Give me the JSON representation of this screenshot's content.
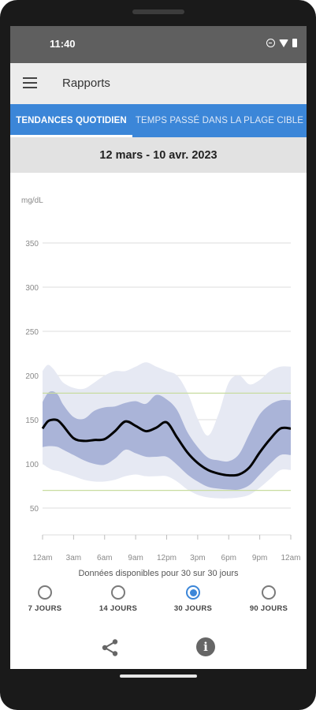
{
  "status_bar": {
    "time": "11:40",
    "icons": [
      "do-not-disturb-icon",
      "wifi-icon",
      "battery-icon"
    ]
  },
  "app_bar": {
    "menu_icon": "hamburger-menu-icon",
    "title": "Rapports"
  },
  "tabs": [
    {
      "label": "TENDANCES QUOTIDIEN",
      "active": true
    },
    {
      "label": "TEMPS PASSÉ DANS LA PLAGE CIBLE",
      "active": false
    }
  ],
  "date_range": "12 mars - 10 avr. 2023",
  "chart_data": {
    "type": "area",
    "ylabel": "mg/dL",
    "yticks": [
      50,
      100,
      150,
      200,
      250,
      300,
      350
    ],
    "ylim": [
      0,
      370
    ],
    "xticks": [
      "12am",
      "3am",
      "6am",
      "9am",
      "12pm",
      "3pm",
      "6pm",
      "9pm",
      "12am"
    ],
    "xlim": [
      0,
      24
    ],
    "target_range": [
      70,
      180
    ],
    "grid": true,
    "colors": {
      "median": "#000000",
      "inner_band": "#aab4d8",
      "outer_band": "#e6e9f3",
      "target_line": "#c8dca0",
      "grid": "#dedede"
    },
    "series": [
      {
        "x": [
          0,
          0.5,
          1,
          1.5,
          2,
          3,
          4,
          5,
          6,
          7,
          8,
          9,
          10,
          11,
          12,
          13,
          14,
          15,
          16,
          17,
          18,
          19,
          20,
          21,
          22,
          23,
          24
        ],
        "median": [
          140,
          148,
          150,
          149,
          143,
          129,
          126,
          127,
          128,
          137,
          148,
          143,
          137,
          141,
          147,
          130,
          113,
          101,
          93,
          89,
          87,
          88,
          96,
          113,
          128,
          140,
          140
        ],
        "p25": [
          119,
          120,
          120,
          119,
          116,
          110,
          104,
          100,
          99,
          106,
          116,
          112,
          108,
          108,
          108,
          99,
          88,
          80,
          74,
          72,
          71,
          71,
          76,
          88,
          100,
          110,
          110
        ],
        "p75": [
          170,
          180,
          182,
          178,
          167,
          153,
          151,
          160,
          164,
          165,
          169,
          171,
          168,
          178,
          173,
          161,
          136,
          119,
          107,
          104,
          103,
          111,
          134,
          156,
          167,
          172,
          172
        ],
        "p10": [
          100,
          96,
          93,
          92,
          90,
          86,
          82,
          80,
          80,
          82,
          86,
          88,
          86,
          86,
          86,
          80,
          71,
          65,
          62,
          61,
          61,
          62,
          65,
          73,
          83,
          93,
          93
        ],
        "p90": [
          205,
          212,
          208,
          200,
          192,
          186,
          185,
          192,
          200,
          205,
          205,
          210,
          215,
          210,
          205,
          200,
          181,
          151,
          132,
          156,
          192,
          200,
          190,
          195,
          205,
          210,
          210
        ]
      }
    ]
  },
  "availability": "Données disponibles pour 30 sur 30 jours",
  "periods": [
    {
      "label": "7 JOURS",
      "selected": false
    },
    {
      "label": "14 JOURS",
      "selected": false
    },
    {
      "label": "30 JOURS",
      "selected": true
    },
    {
      "label": "90 JOURS",
      "selected": false
    }
  ],
  "bottom_bar": {
    "share_icon": "share-icon",
    "info_icon": "info-icon",
    "info_glyph": "i"
  }
}
